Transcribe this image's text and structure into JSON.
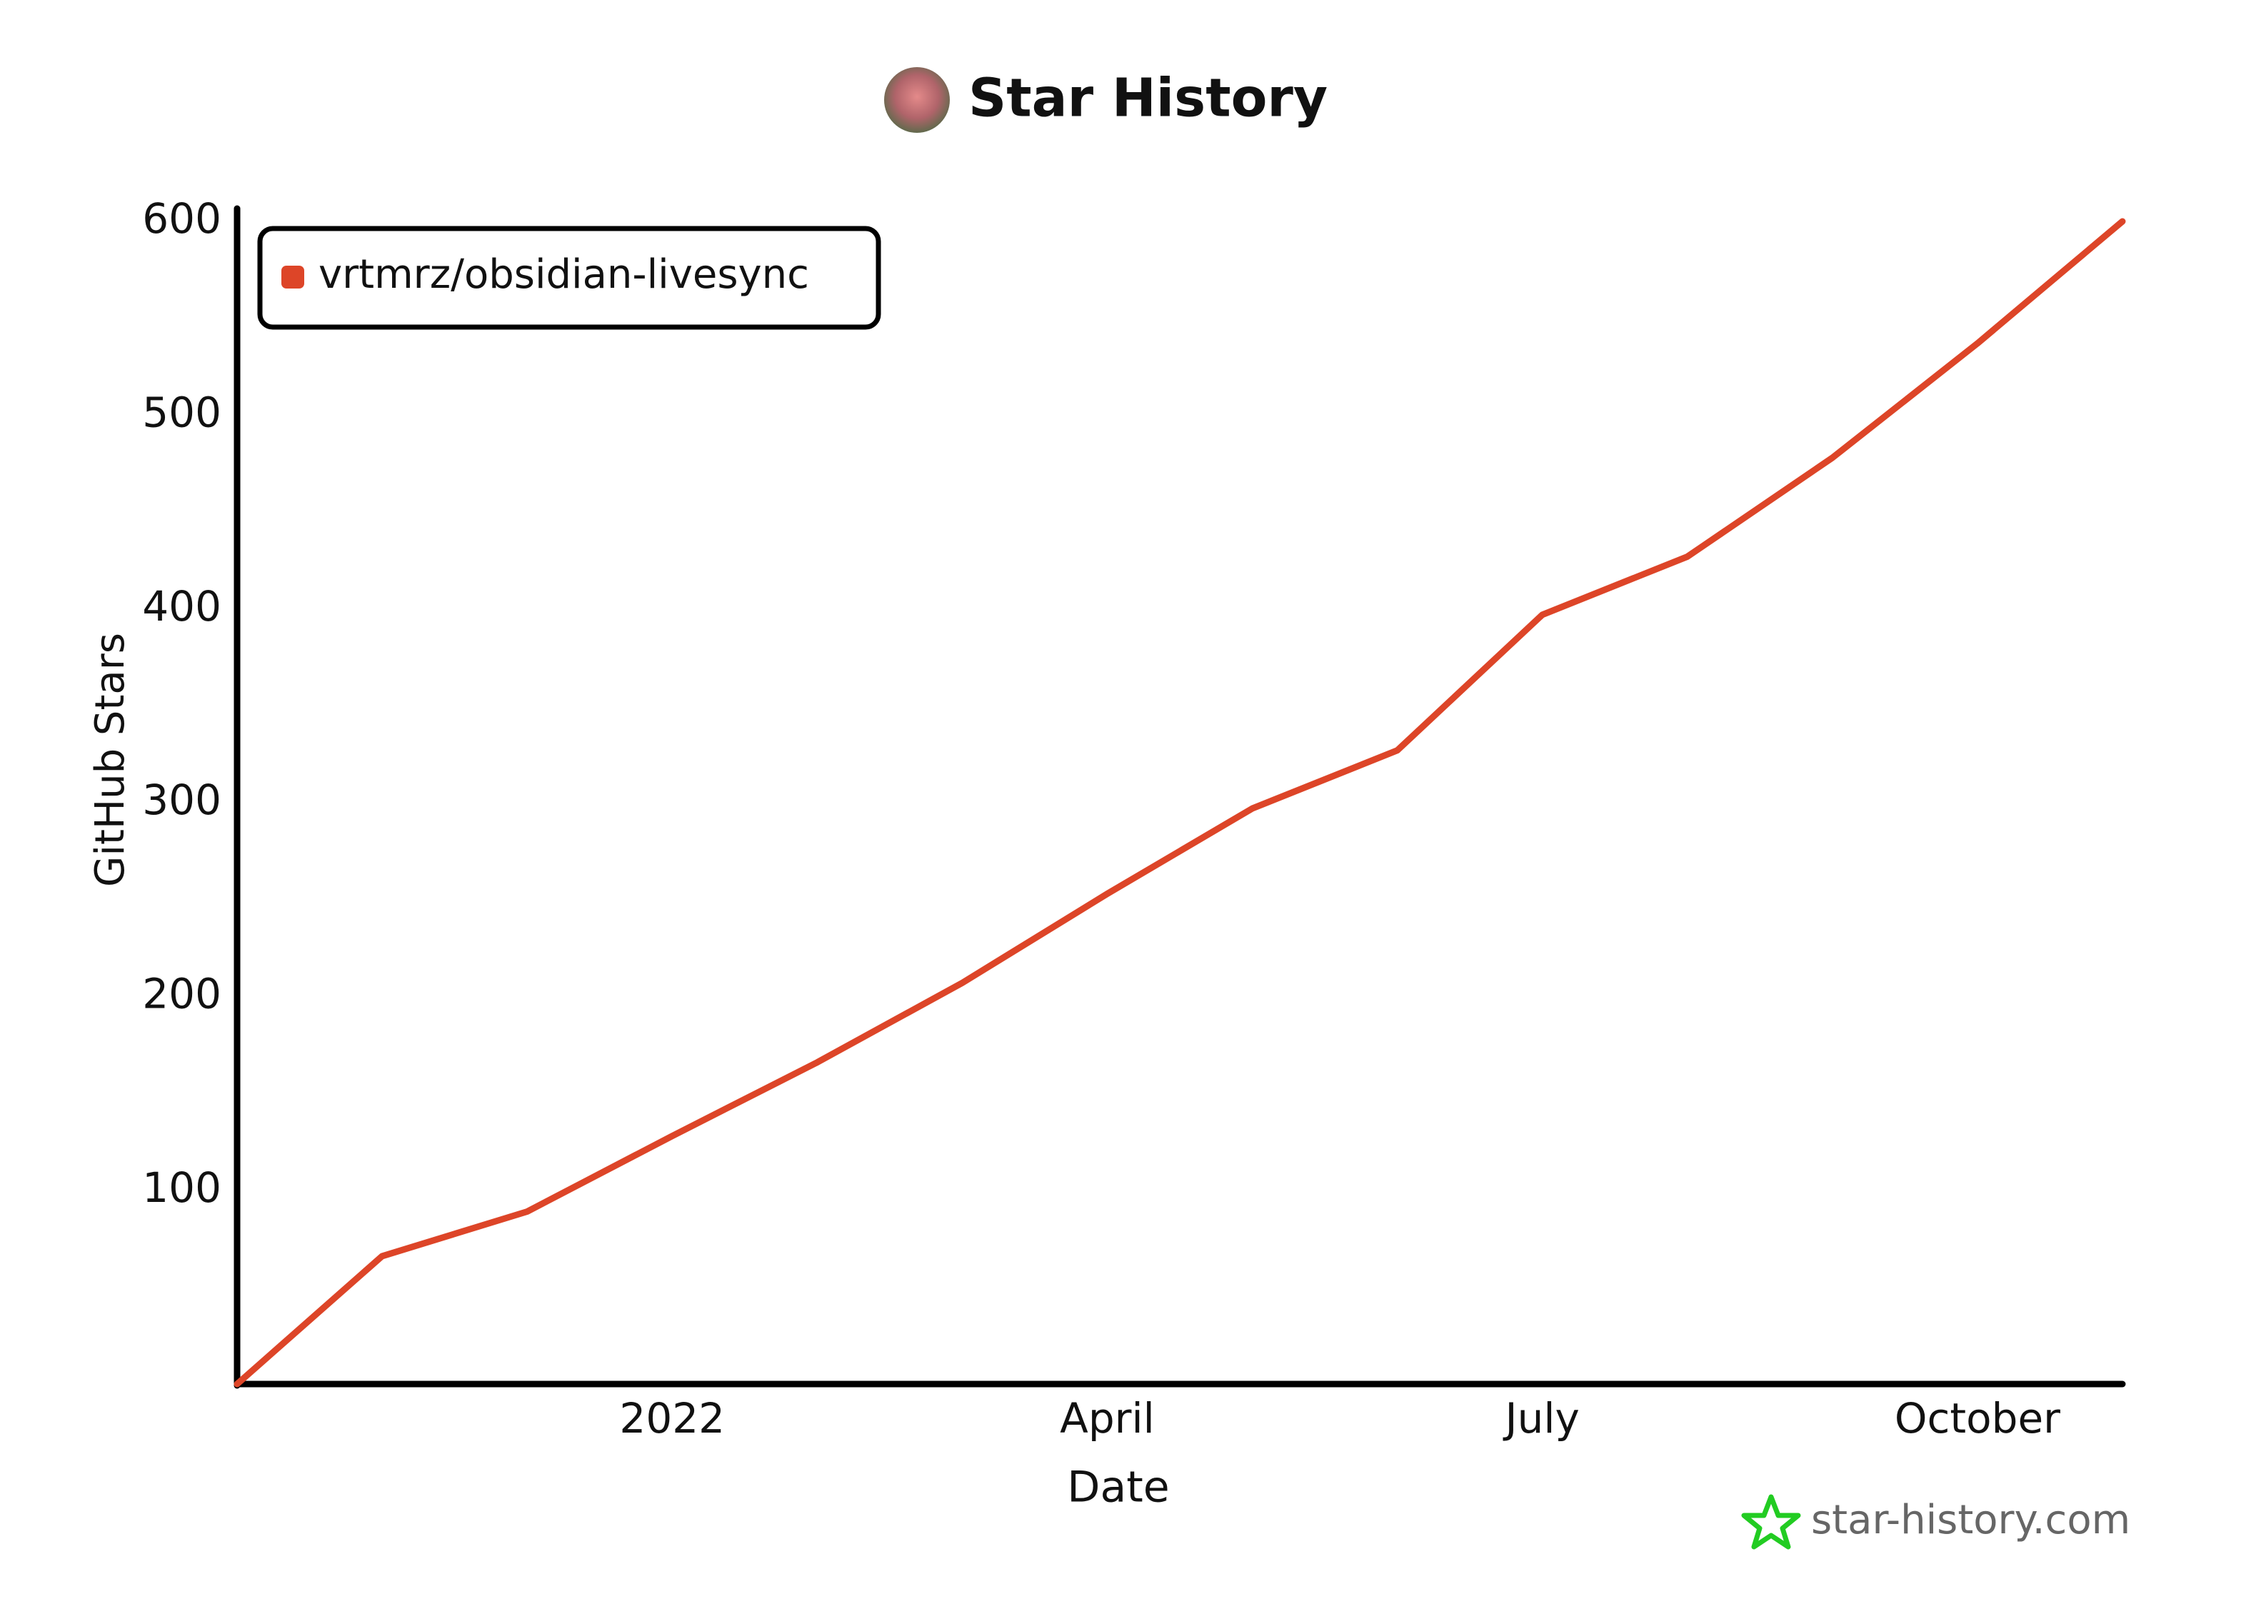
{
  "chart_data": {
    "type": "line",
    "title": "Star History",
    "xlabel": "Date",
    "ylabel": "GitHub Stars",
    "x": [
      "2021-10",
      "2021-11",
      "2021-12",
      "2022-01",
      "2022-02",
      "2022-03",
      "2022-04",
      "2022-05",
      "2022-06",
      "2022-07",
      "2022-08",
      "2022-09",
      "2022-10",
      "2022-11"
    ],
    "series": [
      {
        "name": "vrtmrz/obsidian-livesync",
        "color": "#dd4528",
        "values": [
          0,
          66,
          89,
          128,
          166,
          207,
          253,
          297,
          327,
          397,
          427,
          478,
          537,
          600
        ]
      }
    ],
    "xlim": [
      "2021-10",
      "2022-11"
    ],
    "xticks": [
      {
        "value": "2022-01",
        "label": "2022"
      },
      {
        "value": "2022-04",
        "label": "April"
      },
      {
        "value": "2022-07",
        "label": "July"
      },
      {
        "value": "2022-10",
        "label": "October"
      }
    ],
    "ylim": [
      0,
      600
    ],
    "yticks": [
      100,
      200,
      300,
      400,
      500,
      600
    ],
    "legend": "upper left",
    "grid": false
  },
  "watermark": "star-history.com"
}
